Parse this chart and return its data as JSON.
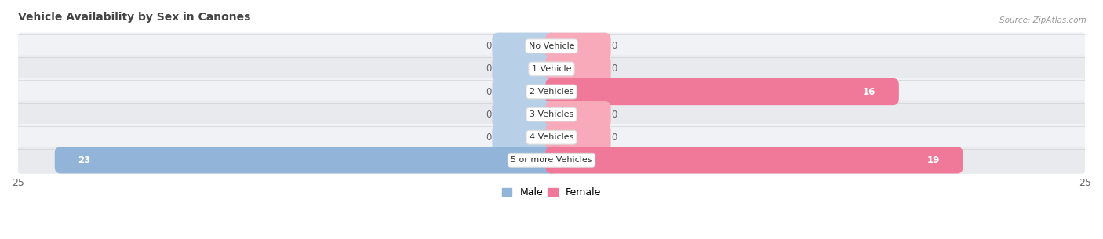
{
  "title": "Vehicle Availability by Sex in Canones",
  "source": "Source: ZipAtlas.com",
  "categories": [
    "No Vehicle",
    "1 Vehicle",
    "2 Vehicles",
    "3 Vehicles",
    "4 Vehicles",
    "5 or more Vehicles"
  ],
  "male_values": [
    0,
    0,
    0,
    0,
    0,
    23
  ],
  "female_values": [
    0,
    0,
    16,
    0,
    0,
    19
  ],
  "male_color": "#92b4d8",
  "female_color": "#f07898",
  "male_stub_color": "#b8cfe8",
  "female_stub_color": "#f8aabb",
  "row_colors": [
    "#f0f2f5",
    "#e8eaed"
  ],
  "xlim": 25,
  "stub_size": 2.5,
  "value_label_fontsize": 8.5,
  "title_fontsize": 10,
  "axis_label_fontsize": 9,
  "legend_fontsize": 9,
  "bar_height": 0.62,
  "title_color": "#444444",
  "source_color": "#999999",
  "label_color": "#555555"
}
